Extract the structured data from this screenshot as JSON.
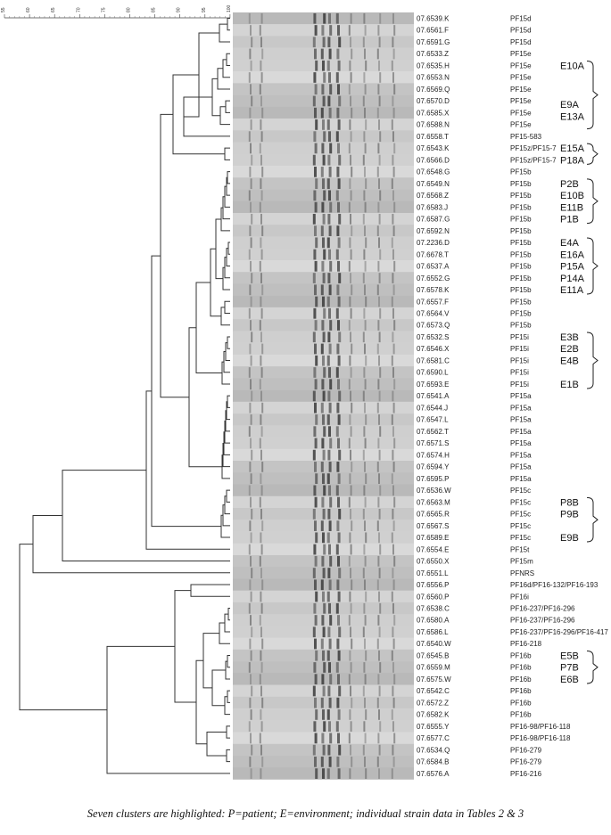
{
  "scale": {
    "ticks": [
      "55",
      "60",
      "65",
      "70",
      "75",
      "80",
      "85",
      "90",
      "95",
      "100"
    ]
  },
  "rows": [
    {
      "id": "07.6539.K",
      "profile": "PF15d"
    },
    {
      "id": "07.6561.F",
      "profile": "PF15d"
    },
    {
      "id": "07.6591.G",
      "profile": "PF15d"
    },
    {
      "id": "07.6533.Z",
      "profile": "PF15e"
    },
    {
      "id": "07.6535.H",
      "profile": "PF15e"
    },
    {
      "id": "07.6553.N",
      "profile": "PF15e"
    },
    {
      "id": "07.6569.Q",
      "profile": "PF15e"
    },
    {
      "id": "07.6570.D",
      "profile": "PF15e"
    },
    {
      "id": "07.6585.X",
      "profile": "PF15e"
    },
    {
      "id": "07.6588.N",
      "profile": "PF15e"
    },
    {
      "id": "07.6558.T",
      "profile": "PF15-583"
    },
    {
      "id": "07.6543.K",
      "profile": "PF15z/PF15-7"
    },
    {
      "id": "07.6566.D",
      "profile": "PF15z/PF15-7"
    },
    {
      "id": "07.6548.G",
      "profile": "PF15b"
    },
    {
      "id": "07.6549.N",
      "profile": "PF15b"
    },
    {
      "id": "07.6568.Z",
      "profile": "PF15b"
    },
    {
      "id": "07.6583.J",
      "profile": "PF15b"
    },
    {
      "id": "07.6587.G",
      "profile": "PF15b"
    },
    {
      "id": "07.6592.N",
      "profile": "PF15b"
    },
    {
      "id": "07.2236.D",
      "profile": "PF15b"
    },
    {
      "id": "07.6678.T",
      "profile": "PF15b"
    },
    {
      "id": "07.6537.A",
      "profile": "PF15b"
    },
    {
      "id": "07.6552.G",
      "profile": "PF15b"
    },
    {
      "id": "07.6578.K",
      "profile": "PF15b"
    },
    {
      "id": "07.6557.F",
      "profile": "PF15b"
    },
    {
      "id": "07.6564.V",
      "profile": "PF15b"
    },
    {
      "id": "07.6573.Q",
      "profile": "PF15b"
    },
    {
      "id": "07.6532.S",
      "profile": "PF15i"
    },
    {
      "id": "07.6546.X",
      "profile": "PF15i"
    },
    {
      "id": "07.6581.C",
      "profile": "PF15i"
    },
    {
      "id": "07.6590.L",
      "profile": "PF15i"
    },
    {
      "id": "07.6593.E",
      "profile": "PF15i"
    },
    {
      "id": "07.6541.A",
      "profile": "PF15a"
    },
    {
      "id": "07.6544.J",
      "profile": "PF15a"
    },
    {
      "id": "07.6547.L",
      "profile": "PF15a"
    },
    {
      "id": "07.6562.T",
      "profile": "PF15a"
    },
    {
      "id": "07.6571.S",
      "profile": "PF15a"
    },
    {
      "id": "07.6574.H",
      "profile": "PF15a"
    },
    {
      "id": "07.6594.Y",
      "profile": "PF15a"
    },
    {
      "id": "07.6595.P",
      "profile": "PF15a"
    },
    {
      "id": "07.6536.W",
      "profile": "PF15c"
    },
    {
      "id": "07.6563.M",
      "profile": "PF15c"
    },
    {
      "id": "07.6565.R",
      "profile": "PF15c"
    },
    {
      "id": "07.6567.S",
      "profile": "PF15c"
    },
    {
      "id": "07.6589.E",
      "profile": "PF15c"
    },
    {
      "id": "07.6554.E",
      "profile": "PF15t"
    },
    {
      "id": "07.6550.X",
      "profile": "PF15m"
    },
    {
      "id": "07.6551.L",
      "profile": "PFNRS"
    },
    {
      "id": "07.6556.P",
      "profile": "PF16d/PF16-132/PF16-193"
    },
    {
      "id": "07.6560.P",
      "profile": "PF16i"
    },
    {
      "id": "07.6538.C",
      "profile": "PF16-237/PF16-296"
    },
    {
      "id": "07.6580.A",
      "profile": "PF16-237/PF16-296"
    },
    {
      "id": "07.6586.L",
      "profile": "PF16-237/PF16-296/PF16-417"
    },
    {
      "id": "07.6540.W",
      "profile": "PF16-218"
    },
    {
      "id": "07.6545.B",
      "profile": "PF16b"
    },
    {
      "id": "07.6559.M",
      "profile": "PF16b"
    },
    {
      "id": "07.6575.W",
      "profile": "PF16b"
    },
    {
      "id": "07.6542.C",
      "profile": "PF16b"
    },
    {
      "id": "07.6572.Z",
      "profile": "PF16b"
    },
    {
      "id": "07.6582.K",
      "profile": "PF16b"
    },
    {
      "id": "07.6555.Y",
      "profile": "PF16-98/PF16-118"
    },
    {
      "id": "07.6577.C",
      "profile": "PF16-98/PF16-118"
    },
    {
      "id": "07.6534.Q",
      "profile": "PF16-279"
    },
    {
      "id": "07.6584.B",
      "profile": "PF16-279"
    },
    {
      "id": "07.6576.A",
      "profile": "PF16-216"
    }
  ],
  "clusters": [
    {
      "labels": [
        {
          "text": "E10A",
          "row": 4
        },
        {
          "text": "E9A",
          "row": 7.3
        },
        {
          "text": "E13A",
          "row": 8.3
        }
      ],
      "from": 4,
      "to": 9
    },
    {
      "labels": [
        {
          "text": "E15A",
          "row": 11
        },
        {
          "text": "P18A",
          "row": 12
        }
      ],
      "from": 11,
      "to": 12
    },
    {
      "labels": [
        {
          "text": "P2B",
          "row": 14
        },
        {
          "text": "E10B",
          "row": 15
        },
        {
          "text": "E11B",
          "row": 16
        },
        {
          "text": "P1B",
          "row": 17
        }
      ],
      "from": 14,
      "to": 17
    },
    {
      "labels": [
        {
          "text": "E4A",
          "row": 19
        },
        {
          "text": "E16A",
          "row": 20
        },
        {
          "text": "P15A",
          "row": 21
        },
        {
          "text": "P14A",
          "row": 22
        },
        {
          "text": "E11A",
          "row": 23
        }
      ],
      "from": 19,
      "to": 23
    },
    {
      "labels": [
        {
          "text": "E3B",
          "row": 27
        },
        {
          "text": "E2B",
          "row": 28
        },
        {
          "text": "E4B",
          "row": 29
        },
        {
          "text": "E1B",
          "row": 31
        }
      ],
      "from": 27,
      "to": 31
    },
    {
      "labels": [
        {
          "text": "P8B",
          "row": 41
        },
        {
          "text": "P9B",
          "row": 42
        },
        {
          "text": "E9B",
          "row": 44
        }
      ],
      "from": 41,
      "to": 44
    },
    {
      "labels": [
        {
          "text": "E5B",
          "row": 54
        },
        {
          "text": "P7B",
          "row": 55
        },
        {
          "text": "E6B",
          "row": 56
        }
      ],
      "from": 54,
      "to": 56
    }
  ],
  "caption": "Seven clusters are highlighted: P=patient; E=environment; individual strain data in Tables 2 & 3"
}
